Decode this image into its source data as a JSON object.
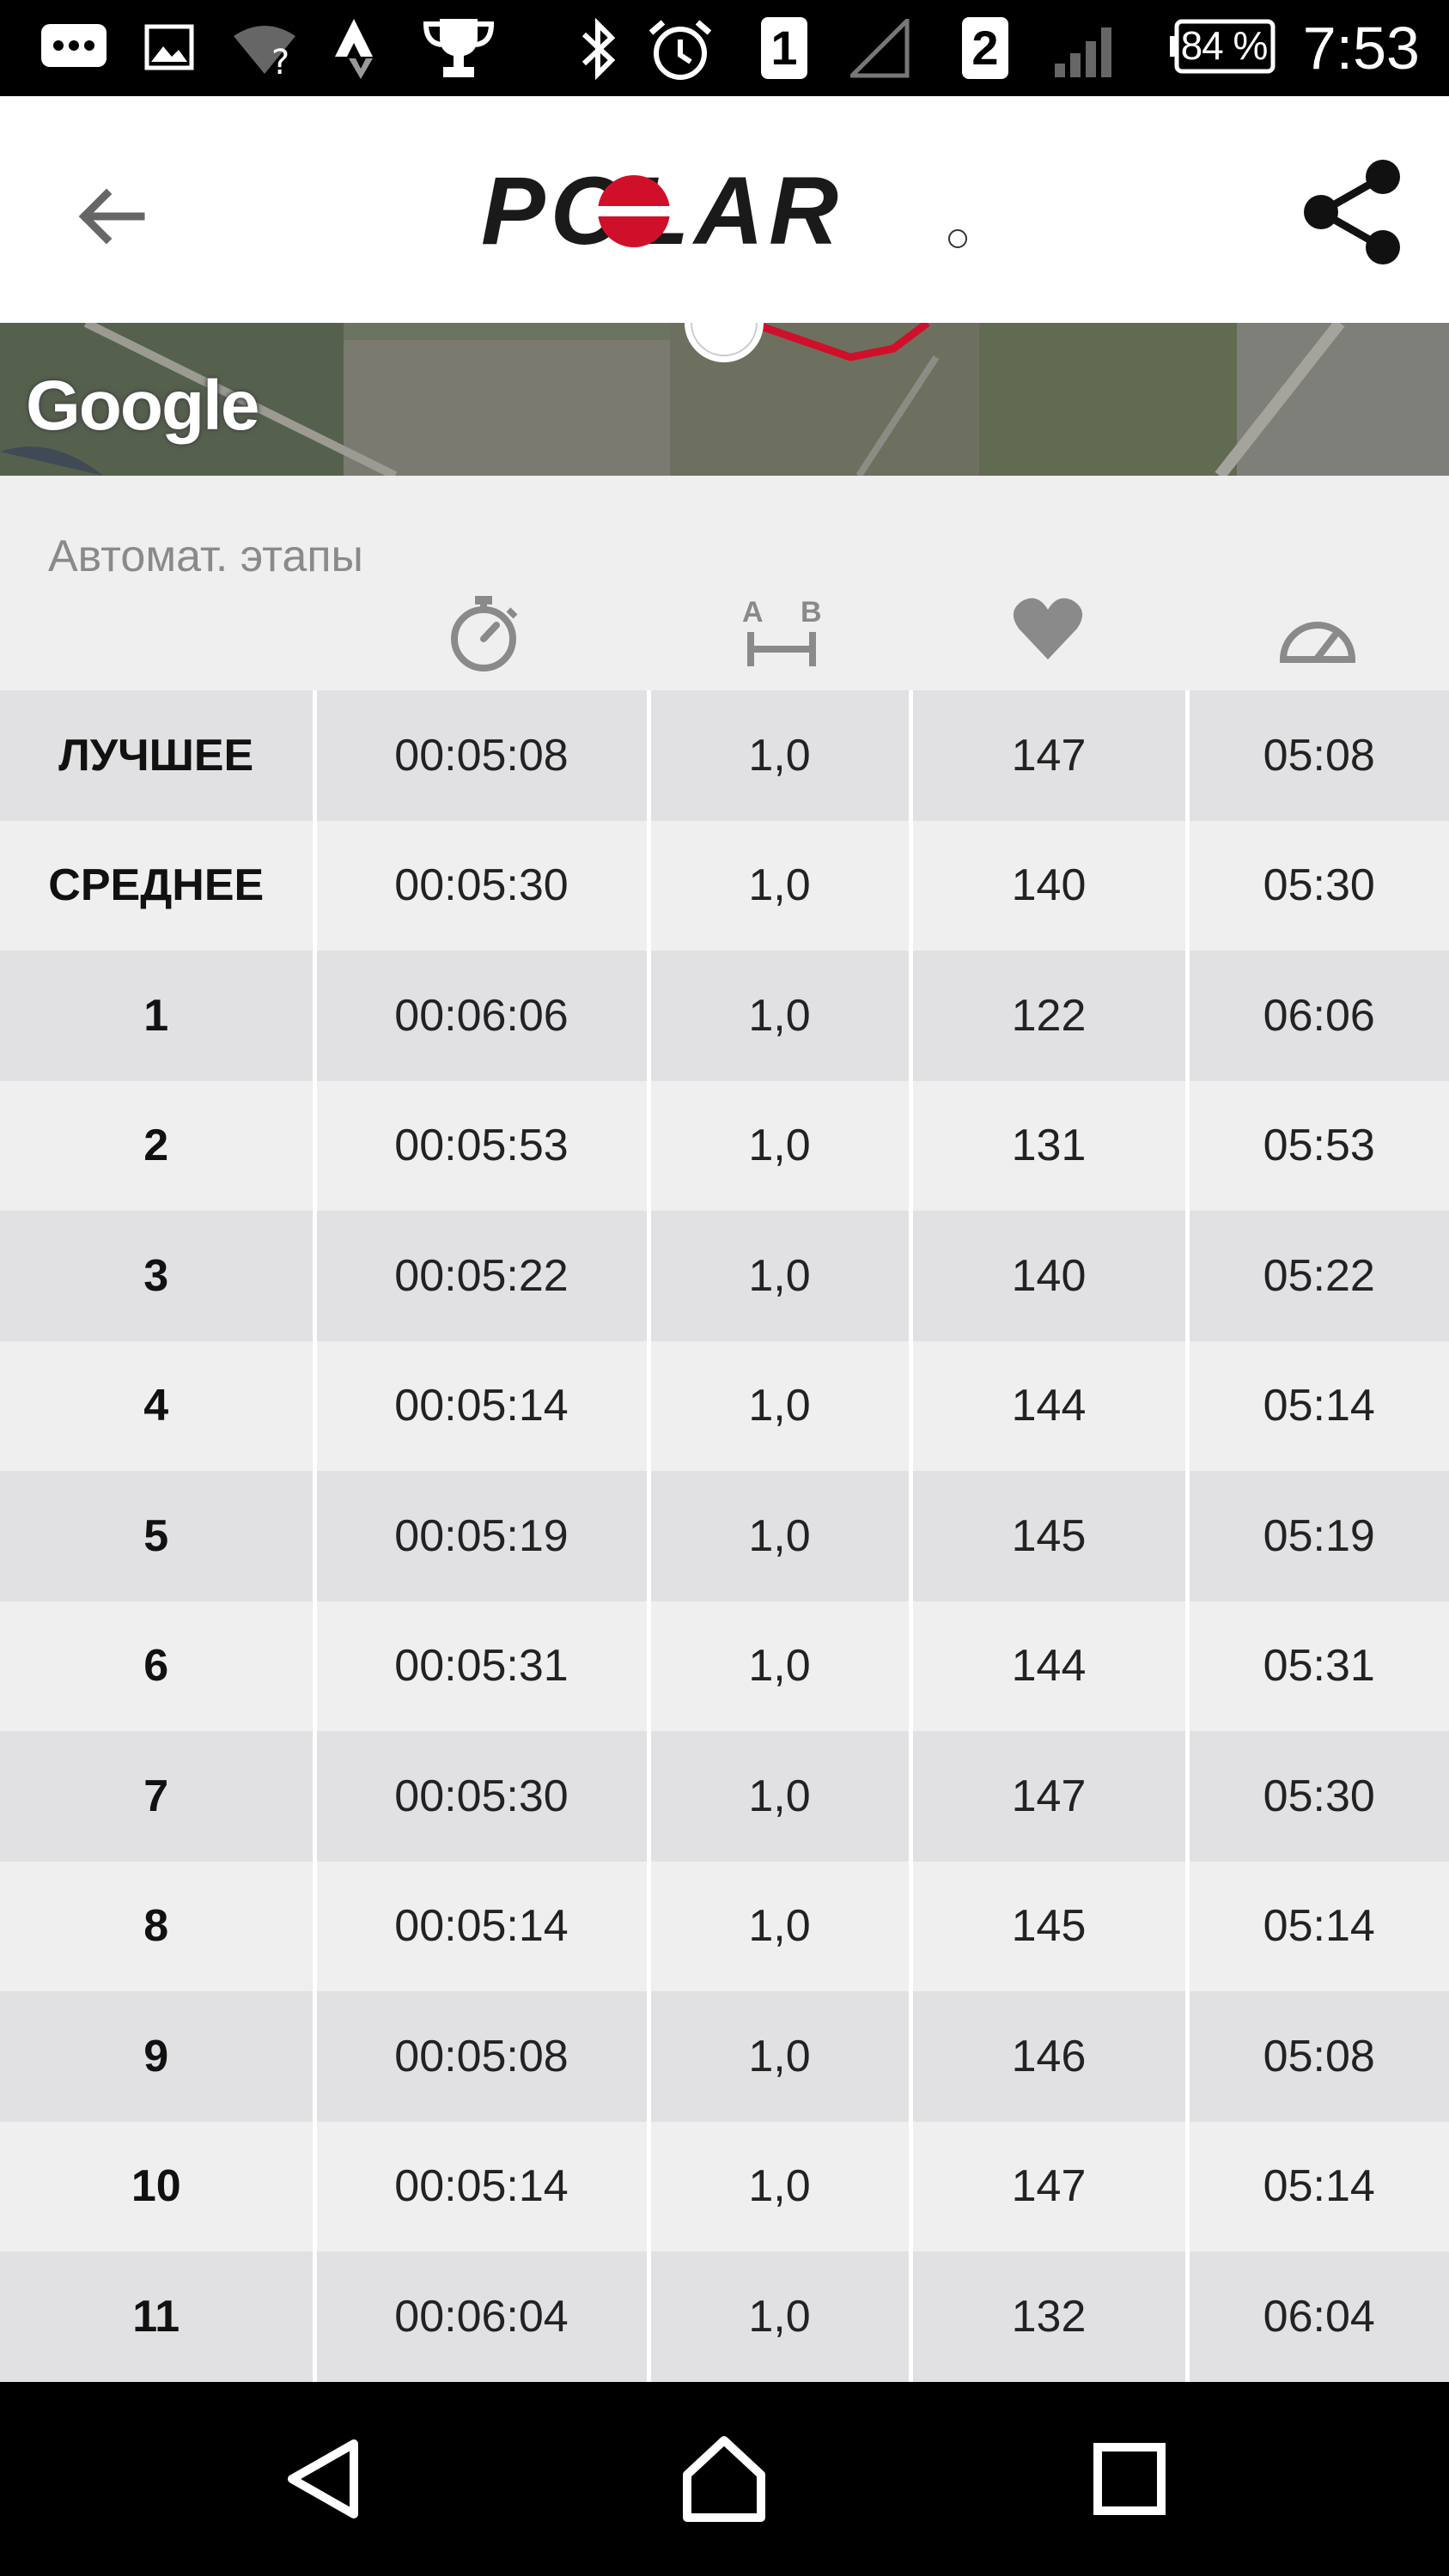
{
  "status_bar": {
    "sim1": "1",
    "sim2": "2",
    "battery": "84 %",
    "time": "7:53"
  },
  "app_bar": {
    "logo_text": "POLAR"
  },
  "map": {
    "attribution": "Google"
  },
  "laps": {
    "title": "Автомат. этапы",
    "columns": [
      {
        "icon": "stopwatch-icon"
      },
      {
        "icon": "distance-ab-icon"
      },
      {
        "icon": "heart-icon"
      },
      {
        "icon": "speedometer-icon"
      }
    ],
    "rows": [
      {
        "label": "ЛУЧШЕЕ",
        "time": "00:05:08",
        "distance": "1,0",
        "hr": "147",
        "pace": "05:08"
      },
      {
        "label": "СРЕДНЕЕ",
        "time": "00:05:30",
        "distance": "1,0",
        "hr": "140",
        "pace": "05:30"
      },
      {
        "label": "1",
        "time": "00:06:06",
        "distance": "1,0",
        "hr": "122",
        "pace": "06:06"
      },
      {
        "label": "2",
        "time": "00:05:53",
        "distance": "1,0",
        "hr": "131",
        "pace": "05:53"
      },
      {
        "label": "3",
        "time": "00:05:22",
        "distance": "1,0",
        "hr": "140",
        "pace": "05:22"
      },
      {
        "label": "4",
        "time": "00:05:14",
        "distance": "1,0",
        "hr": "144",
        "pace": "05:14"
      },
      {
        "label": "5",
        "time": "00:05:19",
        "distance": "1,0",
        "hr": "145",
        "pace": "05:19"
      },
      {
        "label": "6",
        "time": "00:05:31",
        "distance": "1,0",
        "hr": "144",
        "pace": "05:31"
      },
      {
        "label": "7",
        "time": "00:05:30",
        "distance": "1,0",
        "hr": "147",
        "pace": "05:30"
      },
      {
        "label": "8",
        "time": "00:05:14",
        "distance": "1,0",
        "hr": "145",
        "pace": "05:14"
      },
      {
        "label": "9",
        "time": "00:05:08",
        "distance": "1,0",
        "hr": "146",
        "pace": "05:08"
      },
      {
        "label": "10",
        "time": "00:05:14",
        "distance": "1,0",
        "hr": "147",
        "pace": "05:14"
      },
      {
        "label": "11",
        "time": "00:06:04",
        "distance": "1,0",
        "hr": "132",
        "pace": "06:04"
      }
    ]
  },
  "colors": {
    "brand_red": "#d0102a",
    "row_dark": "#e1e1e4",
    "row_light": "#efefef"
  }
}
